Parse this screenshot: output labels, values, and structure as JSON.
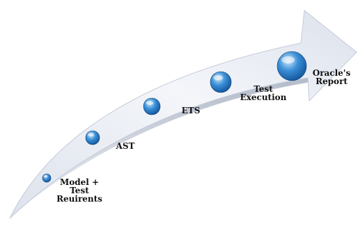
{
  "colors": {
    "arrow_light": "#f4f6fa",
    "arrow_mid": "#dde2ec",
    "arrow_shadow": "#a9b2c3",
    "bead_light": "#cfe8fb",
    "bead_mid": "#3a8fd6",
    "bead_dark": "#0f4f96"
  },
  "stages": [
    {
      "label_lines": [
        "Model +",
        "Test",
        "Reuirents"
      ]
    },
    {
      "label_lines": [
        "AST"
      ]
    },
    {
      "label_lines": [
        "ETS"
      ]
    },
    {
      "label_lines": [
        "Test",
        "Execution"
      ]
    },
    {
      "label_lines": [
        "Oracle's",
        "Report"
      ]
    }
  ]
}
